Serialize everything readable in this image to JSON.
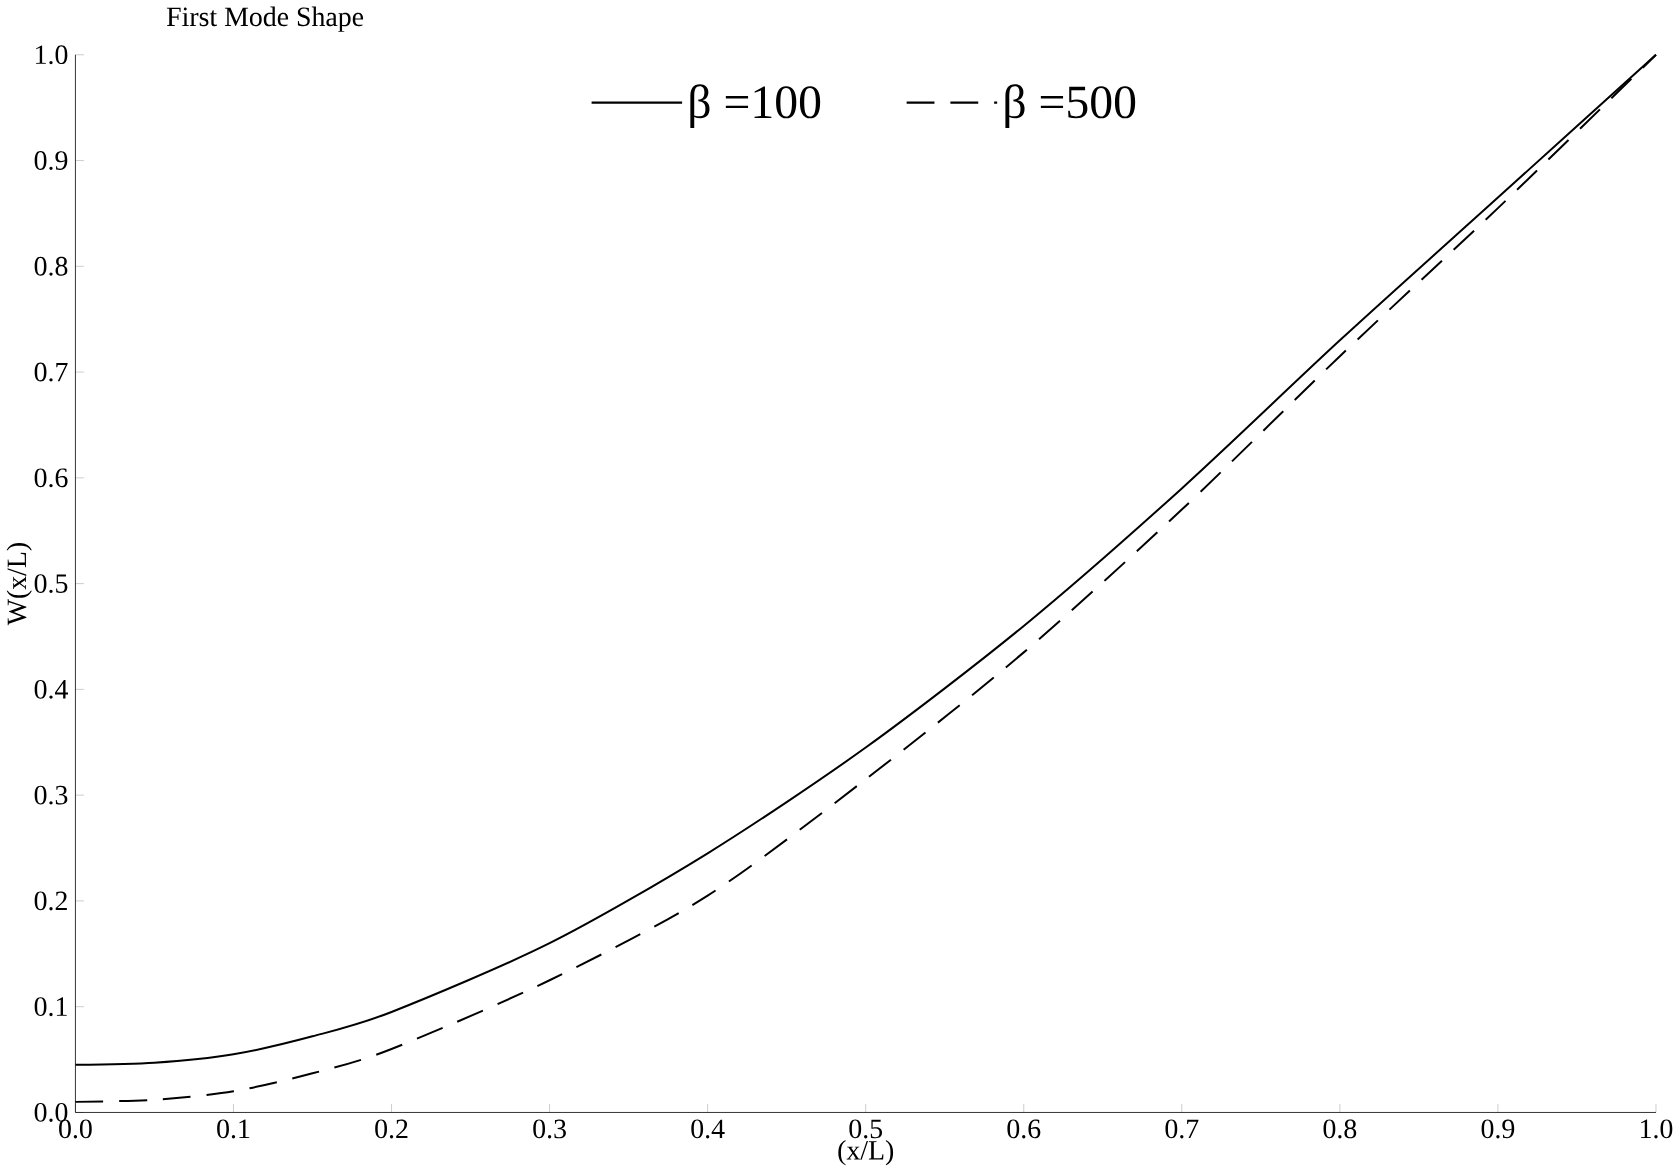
{
  "chart_data": {
    "type": "line",
    "title": "First Mode Shape",
    "xlabel": "(x/L)",
    "ylabel": "W(x/L)",
    "x": [
      0.0,
      0.05,
      0.1,
      0.15,
      0.2,
      0.3,
      0.4,
      0.5,
      0.6,
      0.7,
      0.8,
      0.9,
      1.0
    ],
    "series": [
      {
        "name": "β =100",
        "color": "#000000",
        "line_style": "solid",
        "values": [
          0.045,
          0.047,
          0.055,
          0.072,
          0.095,
          0.16,
          0.245,
          0.345,
          0.46,
          0.59,
          0.73,
          0.865,
          1.0
        ]
      },
      {
        "name": "β =500",
        "color": "#000000",
        "line_style": "dashed",
        "values": [
          0.01,
          0.012,
          0.02,
          0.037,
          0.06,
          0.125,
          0.205,
          0.315,
          0.435,
          0.57,
          0.715,
          0.855,
          1.0
        ]
      }
    ],
    "xlim": [
      0.0,
      1.0
    ],
    "ylim": [
      0.0,
      1.0
    ],
    "xticks": [
      {
        "value": 0.0,
        "label": "0.0"
      },
      0.1,
      0.2,
      0.3,
      0.4,
      0.5,
      0.6,
      0.7,
      0.8,
      0.9,
      {
        "value": 1.0,
        "label": "1.0"
      }
    ],
    "yticks": [
      {
        "value": 0.0,
        "label": "0.0"
      },
      0.1,
      0.2,
      0.3,
      0.4,
      0.5,
      0.6,
      0.7,
      0.8,
      0.9,
      {
        "value": 1.0,
        "label": "1.0"
      }
    ],
    "grid": false,
    "legend": "top",
    "marker": "none"
  }
}
